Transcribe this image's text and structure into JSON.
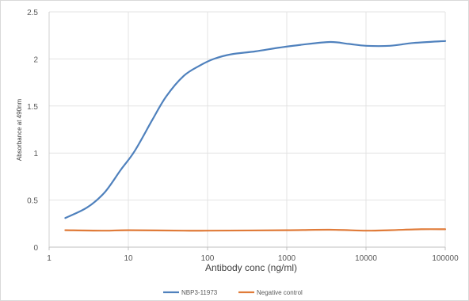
{
  "chart_data": {
    "type": "line",
    "xlabel": "Antibody conc (ng/ml)",
    "ylabel": "Absorbance at 490nm",
    "x_scale": "log",
    "xlim": [
      1,
      100000
    ],
    "ylim": [
      0,
      2.5
    ],
    "x_ticks": [
      {
        "value": 1,
        "label": "1"
      },
      {
        "value": 10,
        "label": "10"
      },
      {
        "value": 100,
        "label": "100"
      },
      {
        "value": 1000,
        "label": "1000"
      },
      {
        "value": 10000,
        "label": "10000"
      },
      {
        "value": 100000,
        "label": "100000"
      }
    ],
    "y_ticks": [
      {
        "value": 0,
        "label": "0"
      },
      {
        "value": 0.5,
        "label": "0.5"
      },
      {
        "value": 1,
        "label": "1"
      },
      {
        "value": 1.5,
        "label": "1.5"
      },
      {
        "value": 2,
        "label": "2"
      },
      {
        "value": 2.5,
        "label": "2.5"
      }
    ],
    "grid": true,
    "legend_position": "bottom",
    "series": [
      {
        "name": "NBP3-11973",
        "color": "#4f81bd",
        "x": [
          1.6,
          3,
          5,
          8,
          12,
          20,
          30,
          50,
          80,
          120,
          200,
          400,
          800,
          1500,
          3500,
          6000,
          10000,
          20000,
          40000,
          100000
        ],
        "y": [
          0.31,
          0.42,
          0.58,
          0.82,
          1.02,
          1.35,
          1.6,
          1.82,
          1.93,
          2.0,
          2.05,
          2.08,
          2.12,
          2.15,
          2.18,
          2.16,
          2.14,
          2.14,
          2.17,
          2.19
        ]
      },
      {
        "name": "Negative control",
        "color": "#e07b39",
        "x": [
          1.6,
          5,
          10,
          50,
          100,
          1000,
          3500,
          10000,
          20000,
          50000,
          100000
        ],
        "y": [
          0.18,
          0.175,
          0.18,
          0.175,
          0.175,
          0.18,
          0.185,
          0.175,
          0.18,
          0.19,
          0.19
        ]
      }
    ]
  }
}
